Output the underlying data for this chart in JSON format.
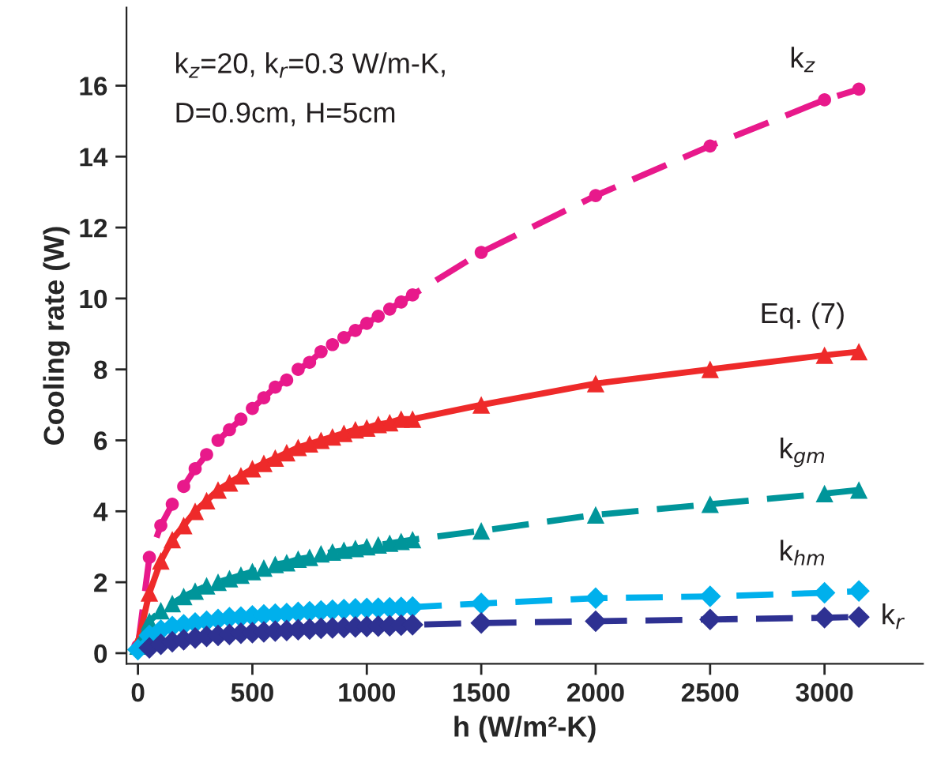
{
  "chart_data": {
    "type": "line",
    "xlabel": "h (W/m²-K)",
    "ylabel": "Cooling rate (W)",
    "annotations": [
      "k$_{z}$=20, k$_{r}$=0.3 W/m-K,",
      "D=0.9cm, H=5cm"
    ],
    "x": [
      0,
      50,
      100,
      150,
      200,
      250,
      300,
      350,
      400,
      450,
      500,
      550,
      600,
      650,
      700,
      750,
      800,
      850,
      900,
      950,
      1000,
      1050,
      1100,
      1150,
      1200,
      1500,
      2000,
      2500,
      3000,
      3150
    ],
    "xlim": [
      -50,
      3430
    ],
    "ylim": [
      -0.3,
      18.2
    ],
    "xticks": [
      0,
      500,
      1000,
      1500,
      2000,
      2500,
      3000
    ],
    "yticks": [
      0,
      2,
      4,
      6,
      8,
      10,
      12,
      14,
      16
    ],
    "grid": false,
    "legend": false,
    "series": [
      {
        "name": "k$_{z}$",
        "color": "#e8198b",
        "marker": "circle",
        "line_style": "dashed",
        "values": [
          0.2,
          2.7,
          3.6,
          4.2,
          4.7,
          5.2,
          5.6,
          6.0,
          6.3,
          6.6,
          6.9,
          7.2,
          7.5,
          7.7,
          8.0,
          8.2,
          8.5,
          8.7,
          8.9,
          9.1,
          9.3,
          9.5,
          9.7,
          9.9,
          10.1,
          11.3,
          12.9,
          14.3,
          15.6,
          15.9
        ]
      },
      {
        "name": "Eq. (7)",
        "color": "#ee2a2a",
        "marker": "triangle",
        "line_style": "solid",
        "values": [
          0.3,
          1.7,
          2.6,
          3.2,
          3.6,
          4.0,
          4.3,
          4.6,
          4.8,
          5.0,
          5.2,
          5.35,
          5.5,
          5.65,
          5.8,
          5.9,
          6.0,
          6.1,
          6.2,
          6.3,
          6.35,
          6.45,
          6.5,
          6.6,
          6.6,
          7.0,
          7.6,
          8.0,
          8.4,
          8.5
        ]
      },
      {
        "name": "k$_{gm}$",
        "color": "#00959a",
        "marker": "triangle",
        "line_style": "dashed",
        "values": [
          0.2,
          0.9,
          1.2,
          1.4,
          1.6,
          1.75,
          1.9,
          2.0,
          2.1,
          2.2,
          2.3,
          2.4,
          2.5,
          2.55,
          2.65,
          2.7,
          2.8,
          2.85,
          2.9,
          2.95,
          3.0,
          3.05,
          3.1,
          3.15,
          3.2,
          3.45,
          3.9,
          4.2,
          4.5,
          4.6
        ]
      },
      {
        "name": "k$_{hm}$",
        "color": "#00b0ec",
        "marker": "diamond",
        "line_style": "dashed",
        "values": [
          0.1,
          0.5,
          0.65,
          0.75,
          0.8,
          0.85,
          0.9,
          0.95,
          1.0,
          1.02,
          1.05,
          1.08,
          1.1,
          1.12,
          1.15,
          1.17,
          1.19,
          1.21,
          1.23,
          1.25,
          1.26,
          1.27,
          1.28,
          1.29,
          1.3,
          1.4,
          1.55,
          1.6,
          1.7,
          1.75
        ]
      },
      {
        "name": "k$_{r}$",
        "color": "#2e3192",
        "marker": "diamond",
        "line_style": "dashed",
        "values": [
          null,
          0.15,
          0.25,
          0.32,
          0.38,
          0.43,
          0.47,
          0.5,
          0.53,
          0.56,
          0.58,
          0.6,
          0.62,
          0.64,
          0.66,
          0.68,
          0.7,
          0.71,
          0.72,
          0.74,
          0.75,
          0.76,
          0.77,
          0.79,
          0.8,
          0.85,
          0.9,
          0.95,
          1.0,
          1.02
        ]
      }
    ]
  }
}
